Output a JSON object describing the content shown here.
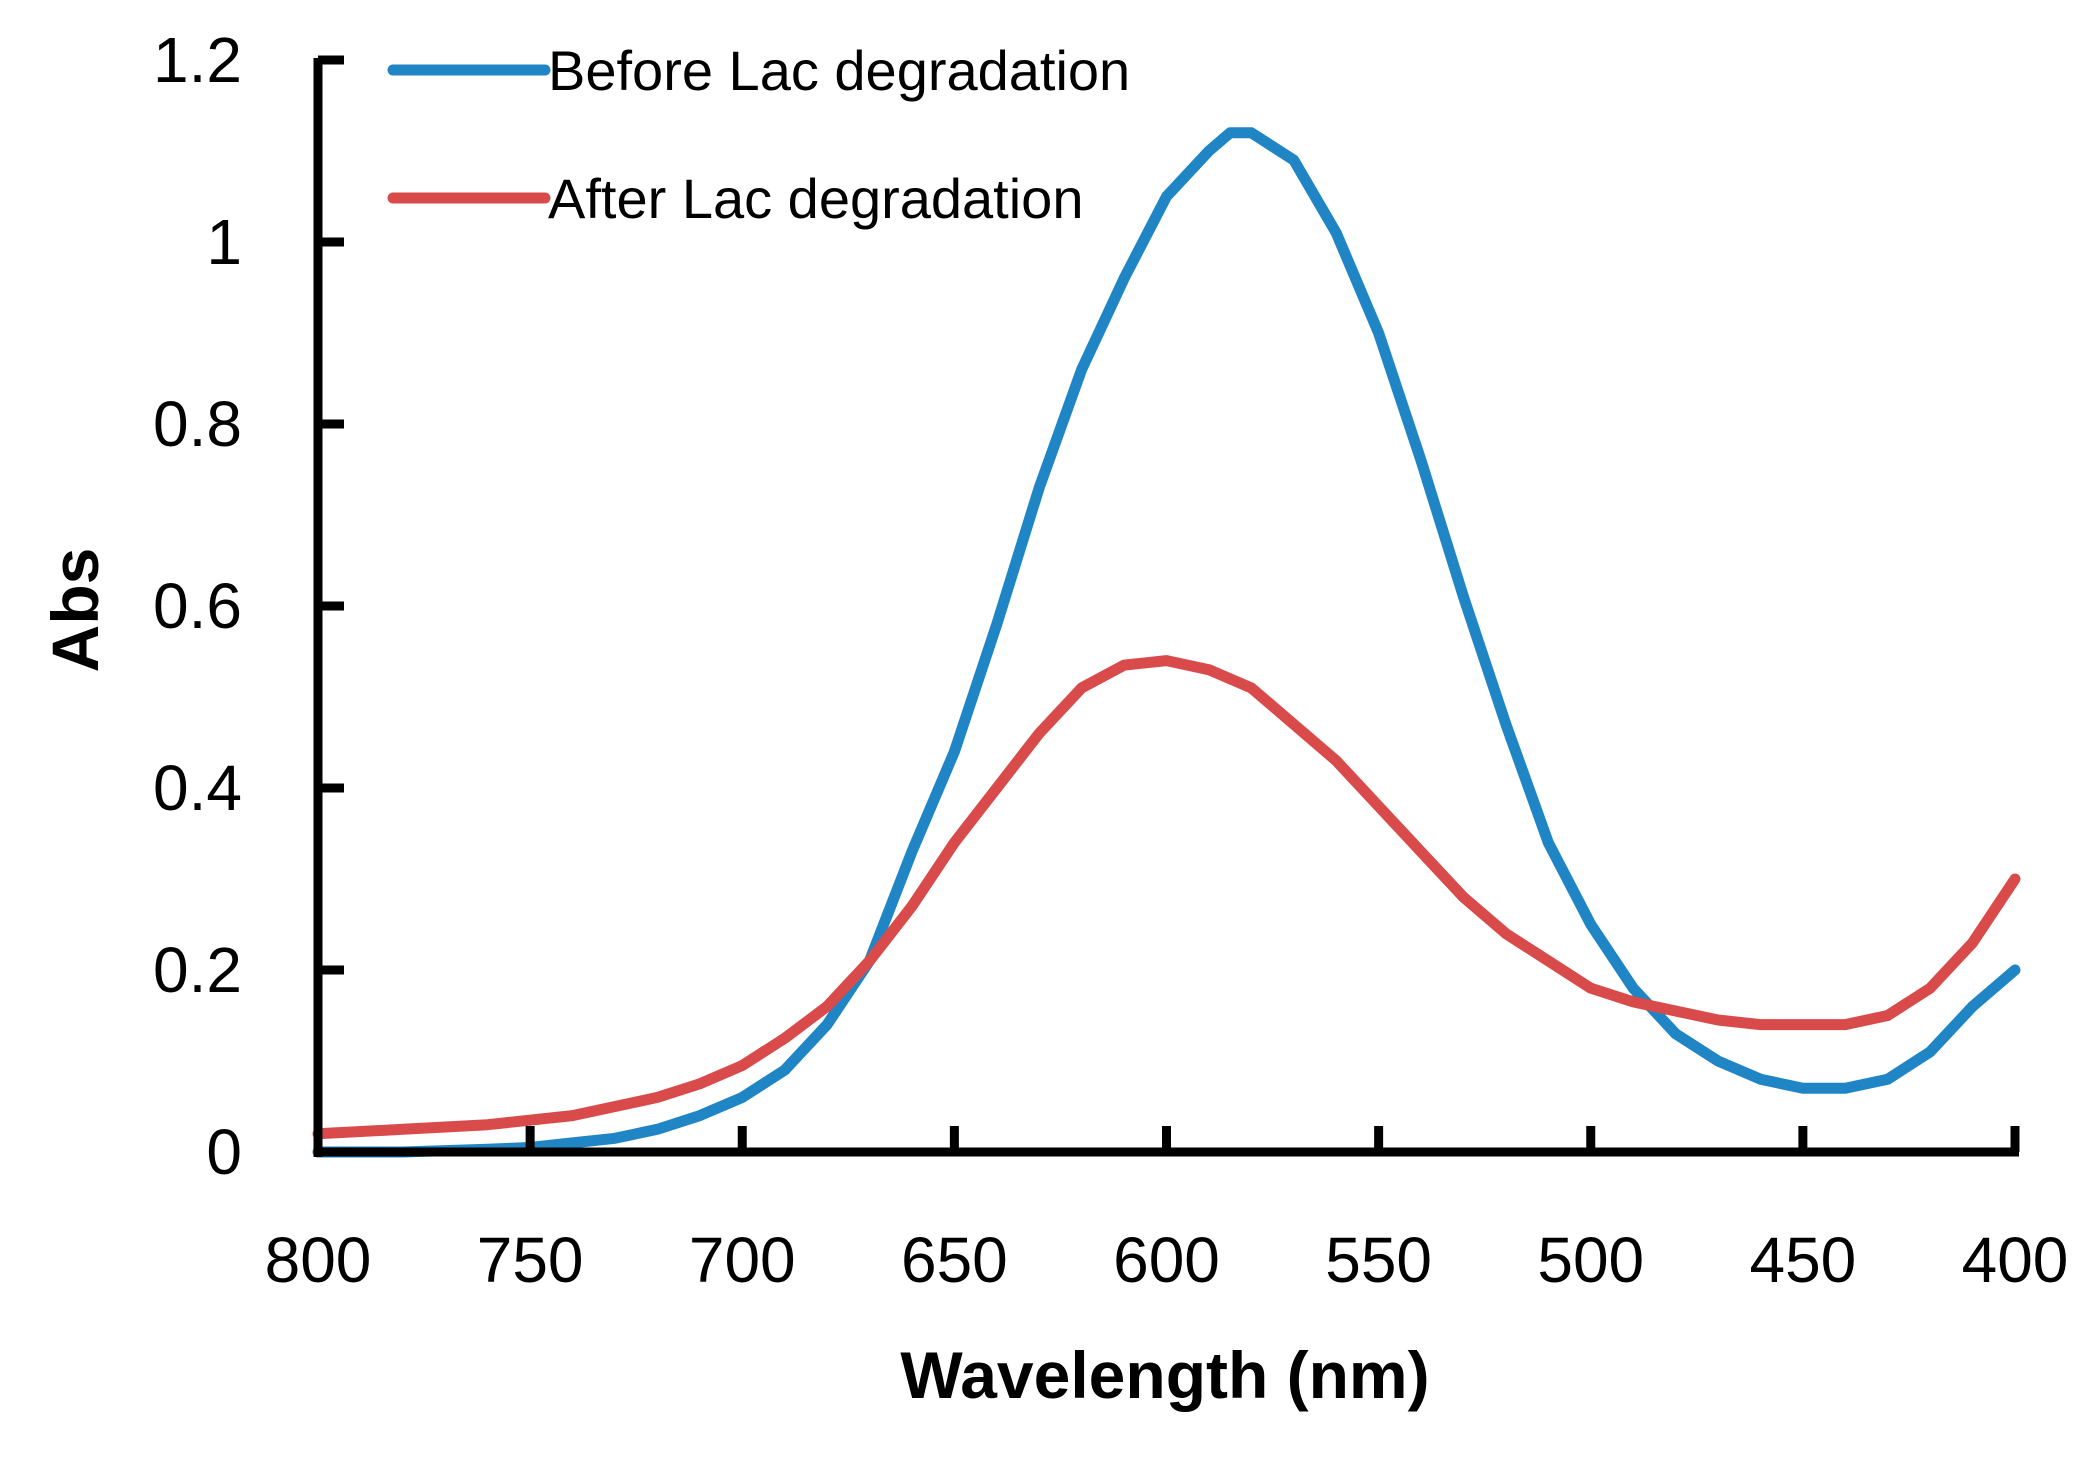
{
  "chart_data": {
    "type": "line",
    "title": "",
    "xlabel": "Wavelength (nm)",
    "ylabel": "Abs",
    "xlim": [
      800,
      400
    ],
    "ylim": [
      0,
      1.2
    ],
    "x_ticks": [
      800,
      750,
      700,
      650,
      600,
      550,
      500,
      450,
      400
    ],
    "x_tick_labels": [
      "800",
      "750",
      "700",
      "650",
      "600",
      "550",
      "500",
      "450",
      "400"
    ],
    "y_ticks": [
      0,
      0.2,
      0.4,
      0.6,
      0.8,
      1.0,
      1.2
    ],
    "y_tick_labels": [
      "0",
      "0.2",
      "0.4",
      "0.6",
      "0.8",
      "1",
      "1.2"
    ],
    "grid": false,
    "legend_position": "top-left",
    "series": [
      {
        "name": "Before Lac degradation",
        "color": "#1f85c4",
        "x": [
          800,
          780,
          760,
          750,
          740,
          730,
          720,
          710,
          700,
          690,
          680,
          670,
          660,
          650,
          640,
          630,
          620,
          610,
          600,
          590,
          585,
          580,
          570,
          560,
          550,
          540,
          530,
          520,
          510,
          500,
          490,
          480,
          470,
          460,
          450,
          440,
          430,
          420,
          410,
          400
        ],
        "y": [
          0.0,
          0.0,
          0.003,
          0.005,
          0.01,
          0.015,
          0.025,
          0.04,
          0.06,
          0.09,
          0.14,
          0.21,
          0.33,
          0.44,
          0.58,
          0.73,
          0.86,
          0.96,
          1.05,
          1.1,
          1.12,
          1.12,
          1.09,
          1.01,
          0.9,
          0.76,
          0.61,
          0.47,
          0.34,
          0.25,
          0.18,
          0.13,
          0.1,
          0.08,
          0.07,
          0.07,
          0.08,
          0.11,
          0.16,
          0.2
        ]
      },
      {
        "name": "After Lac degradation",
        "color": "#d94b4b",
        "x": [
          800,
          780,
          760,
          740,
          720,
          710,
          700,
          690,
          680,
          670,
          660,
          650,
          640,
          630,
          620,
          610,
          600,
          590,
          580,
          570,
          560,
          550,
          540,
          530,
          520,
          510,
          500,
          490,
          480,
          470,
          460,
          450,
          440,
          430,
          420,
          410,
          400
        ],
        "y": [
          0.02,
          0.025,
          0.03,
          0.04,
          0.06,
          0.075,
          0.095,
          0.125,
          0.16,
          0.21,
          0.27,
          0.34,
          0.4,
          0.46,
          0.51,
          0.535,
          0.54,
          0.53,
          0.51,
          0.47,
          0.43,
          0.38,
          0.33,
          0.28,
          0.24,
          0.21,
          0.18,
          0.165,
          0.155,
          0.145,
          0.14,
          0.14,
          0.14,
          0.15,
          0.18,
          0.23,
          0.3
        ]
      }
    ]
  }
}
